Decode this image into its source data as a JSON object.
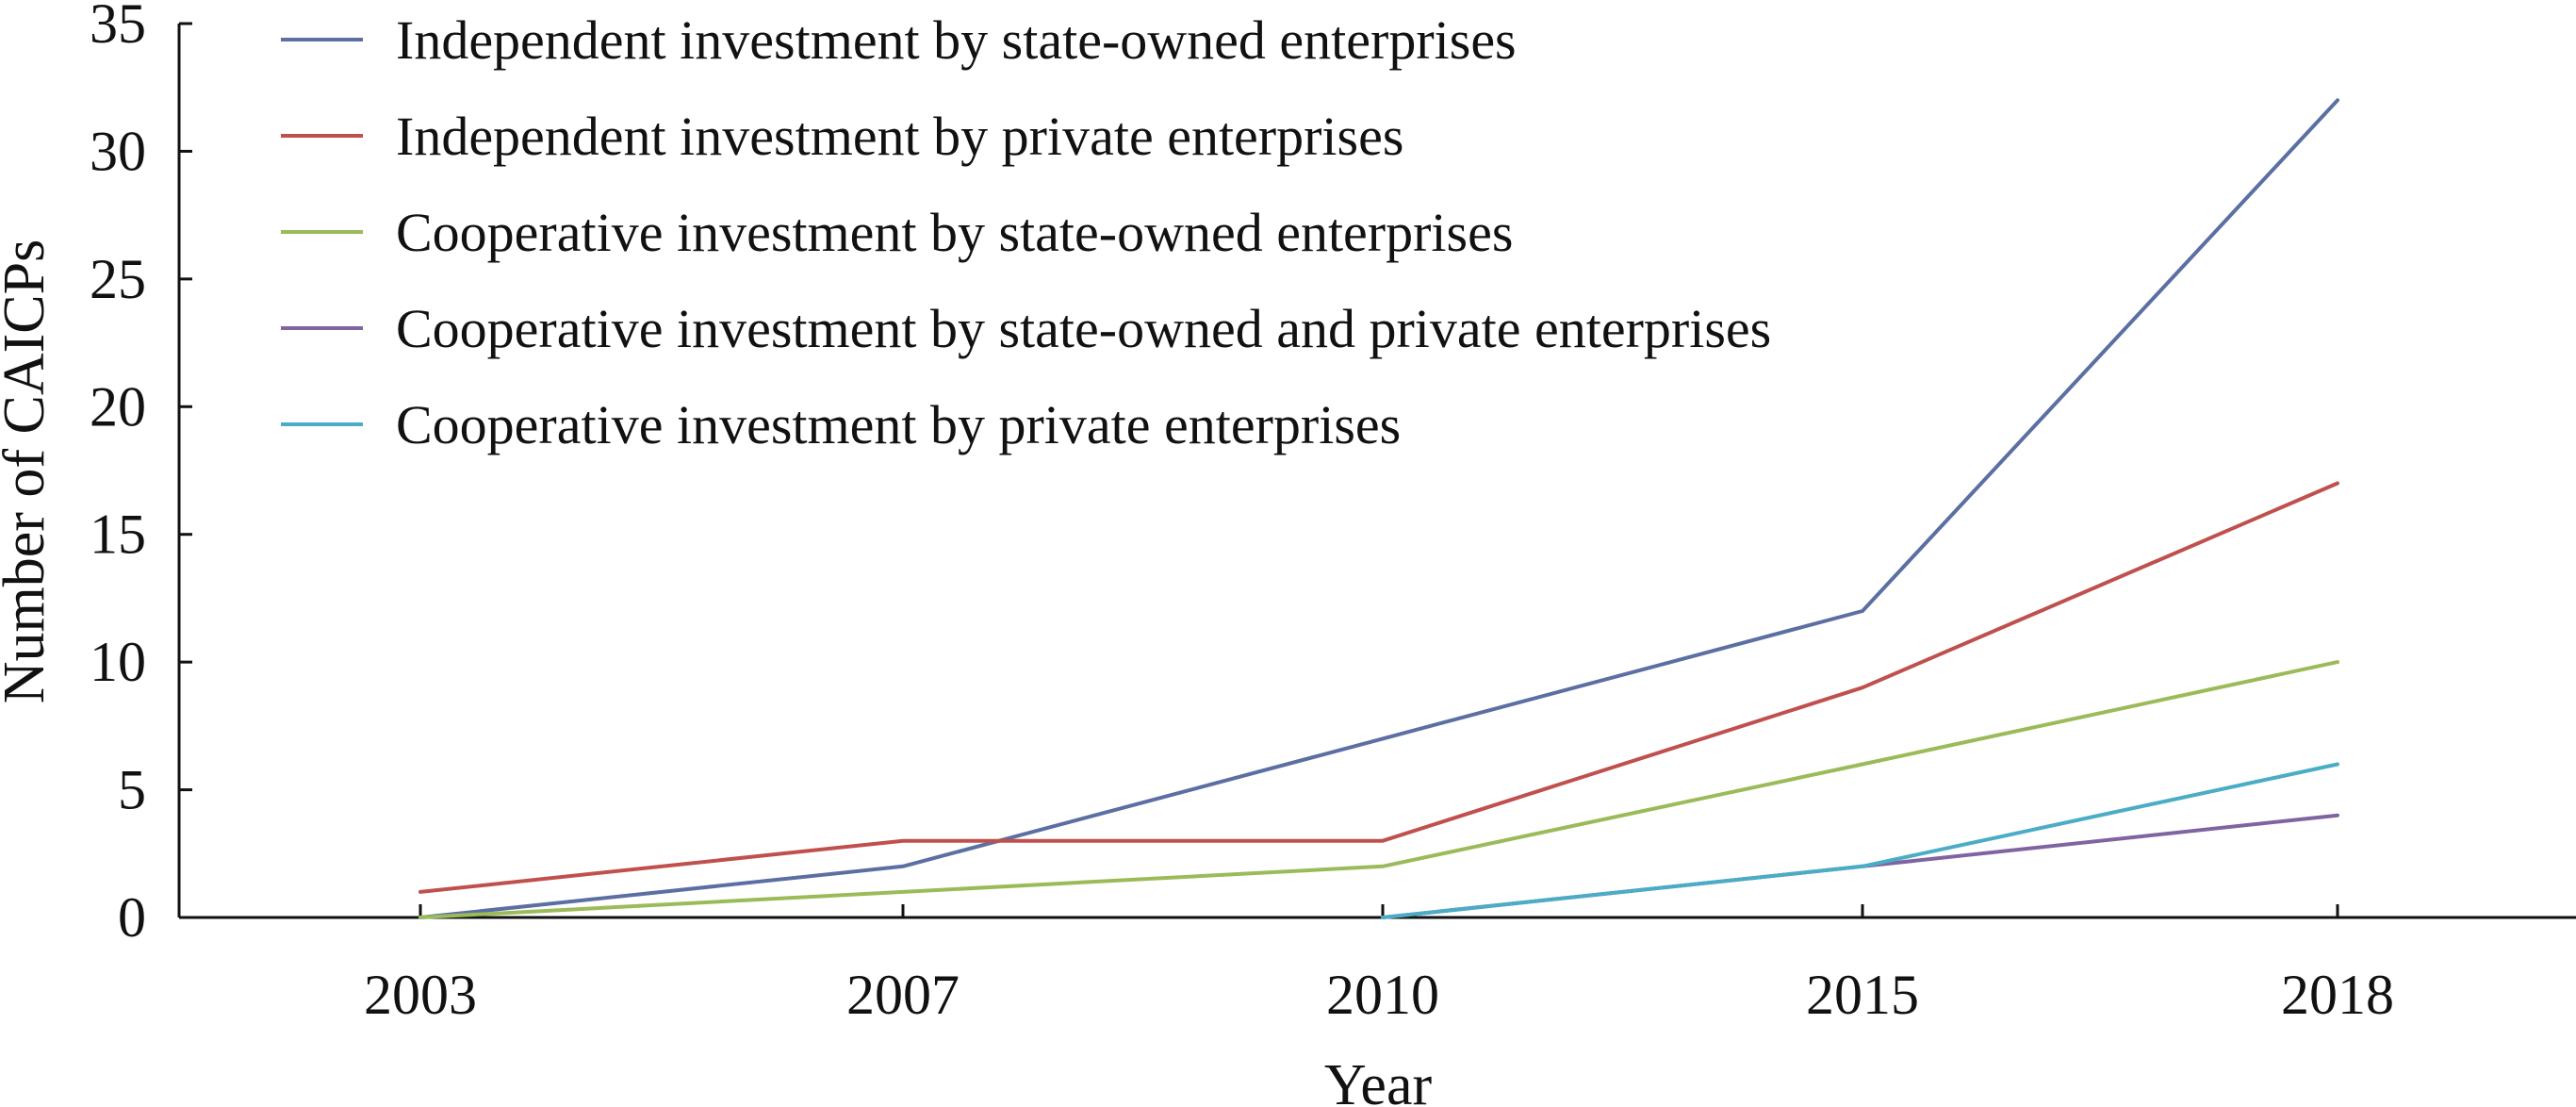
{
  "chart_data": {
    "type": "line",
    "x": [
      "2003",
      "2007",
      "2010",
      "2015",
      "2018"
    ],
    "xlabel": "Year",
    "ylabel": "Number of CAICPs",
    "ylim": [
      0,
      35
    ],
    "yticks": [
      0,
      5,
      10,
      15,
      20,
      25,
      30,
      35
    ],
    "grid": false,
    "legend_position": "top-left",
    "series": [
      {
        "name": "Independent investment by state-owned enterprises",
        "color": "#5b6fa3",
        "values": [
          0,
          2,
          7,
          12,
          32
        ]
      },
      {
        "name": "Independent investment by private enterprises",
        "color": "#c0504d",
        "values": [
          1,
          3,
          3,
          9,
          17
        ]
      },
      {
        "name": "Cooperative investment by state-owned enterprises",
        "color": "#9bbb59",
        "values": [
          0,
          1,
          2,
          6,
          10
        ]
      },
      {
        "name": "Cooperative investment by state-owned and private enterprises",
        "color": "#8064a2",
        "values": [
          null,
          null,
          0,
          2,
          4
        ]
      },
      {
        "name": "Cooperative investment by private enterprises",
        "color": "#4bacc6",
        "values": [
          null,
          null,
          0,
          2,
          6
        ]
      }
    ]
  }
}
